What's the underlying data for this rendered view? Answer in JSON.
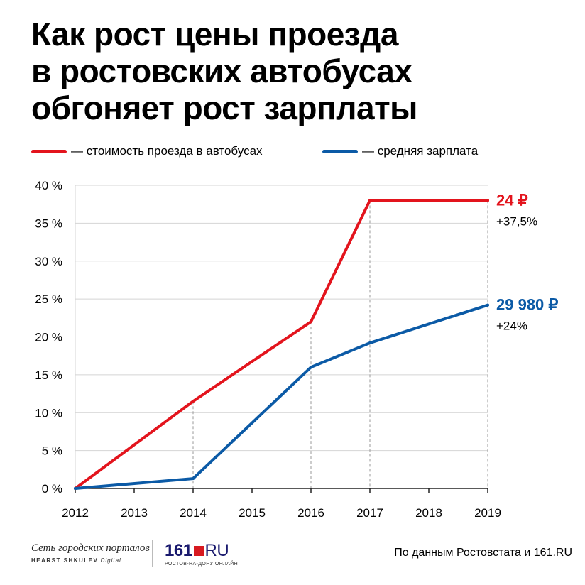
{
  "title_lines": [
    "Как рост цены проезда",
    "в ростовских автобусах",
    "обгоняет рост зарплаты"
  ],
  "legend": [
    {
      "label": "— стоимость проезда в автобусах",
      "color": "#e3141d"
    },
    {
      "label": "— средняя зарплата",
      "color": "#0b5aa6"
    }
  ],
  "chart_data": {
    "type": "line",
    "x": [
      "2012",
      "2013",
      "2014",
      "2015",
      "2016",
      "2017",
      "2018",
      "2019"
    ],
    "ylim": [
      0,
      40
    ],
    "yticks": [
      "0 %",
      "5 %",
      "10 %",
      "15 %",
      "20 %",
      "25 %",
      "30 %",
      "35 %",
      "40 %"
    ],
    "grid": true,
    "series": [
      {
        "name": "— стоимость проезда в автобусах",
        "color": "#e3141d",
        "points": [
          [
            2012,
            0
          ],
          [
            2014,
            11.5
          ],
          [
            2016,
            22
          ],
          [
            2017,
            38
          ],
          [
            2019,
            38
          ]
        ]
      },
      {
        "name": "— средняя зарплата",
        "color": "#0b5aa6",
        "points": [
          [
            2012,
            0
          ],
          [
            2014,
            1.3
          ],
          [
            2016,
            16
          ],
          [
            2017,
            19.2
          ],
          [
            2019,
            24.2
          ]
        ]
      }
    ],
    "annotations": [
      {
        "value": "24 ₽",
        "change": "+37,5%",
        "color": "#e3141d",
        "y": 38
      },
      {
        "value": "29 980 ₽",
        "change": "+24%",
        "color": "#0b5aa6",
        "y": 24.2
      }
    ],
    "guides": [
      2014,
      2016,
      2017,
      2019
    ]
  },
  "footer": {
    "network_script": "Сеть городских порталов",
    "network_sub_bold": "HEARST SHKULEV",
    "network_sub_italic": "Digital",
    "logo_num": "161",
    "logo_ru": "RU",
    "logo_tagline": "РОСТОВ-НА-ДОНУ ОНЛАЙН",
    "source": "По данным Ростовстата и 161.RU"
  }
}
